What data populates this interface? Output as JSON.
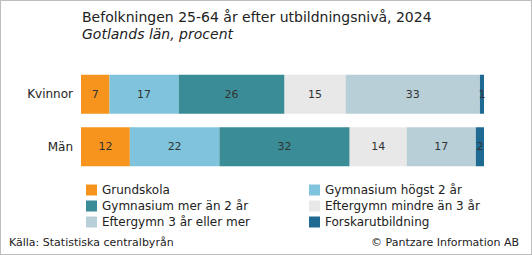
{
  "chart_data": {
    "type": "bar",
    "title": "Befolkningen 25-64 år efter utbildningsnivå, 2024",
    "subtitle": "Gotlands län, procent",
    "orientation": "horizontal",
    "stacked": true,
    "data_labels": true,
    "tick_labels": "y",
    "grid": false,
    "legend": "bottom",
    "categories": [
      "Kvinnor",
      "Män"
    ],
    "xlim": [
      0,
      99
    ],
    "series": [
      {
        "name": "Grundskola",
        "color": "#f7941d",
        "values": [
          7,
          12
        ]
      },
      {
        "name": "Gymnasium högst 2 år",
        "color": "#7fc4dc",
        "values": [
          17,
          22
        ]
      },
      {
        "name": "Gymnasium mer än 2 år",
        "color": "#3a8d96",
        "values": [
          26,
          32
        ]
      },
      {
        "name": "Eftergymn mindre än 3 år",
        "color": "#e8e8e8",
        "values": [
          15,
          14
        ]
      },
      {
        "name": "Eftergymn 3 år eller mer",
        "color": "#b8cfd7",
        "values": [
          33,
          17
        ]
      },
      {
        "name": "Forskarutbildning",
        "color": "#1f6a93",
        "values": [
          1,
          2
        ]
      }
    ],
    "annotations": [
      "Källa: Statistiska centralbyrån",
      "© Pantzare Information AB"
    ]
  }
}
